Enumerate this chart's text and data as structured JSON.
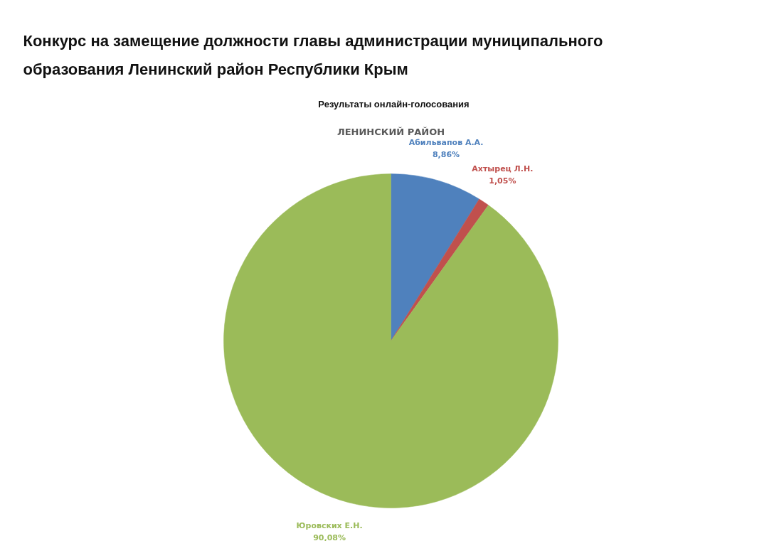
{
  "chart_data": {
    "type": "pie",
    "title": "Конкурс на замещение должности главы администрации муниципального образования Ленинский район Республики Крым",
    "subtitle": "Результаты онлайн-голосования",
    "annotations": [
      "ЛЕНИНСКИЙ РАЙОН"
    ],
    "categories": [
      "Абильвапов А.А.",
      "Ахтырец Л.Н.",
      "Юровских Е.Н."
    ],
    "values": [
      8.86,
      1.05,
      90.08
    ],
    "value_labels": [
      "8,86%",
      "1,05%",
      "90,08%"
    ],
    "colors": [
      "#4f81bd",
      "#c0504d",
      "#9bbb59"
    ]
  }
}
